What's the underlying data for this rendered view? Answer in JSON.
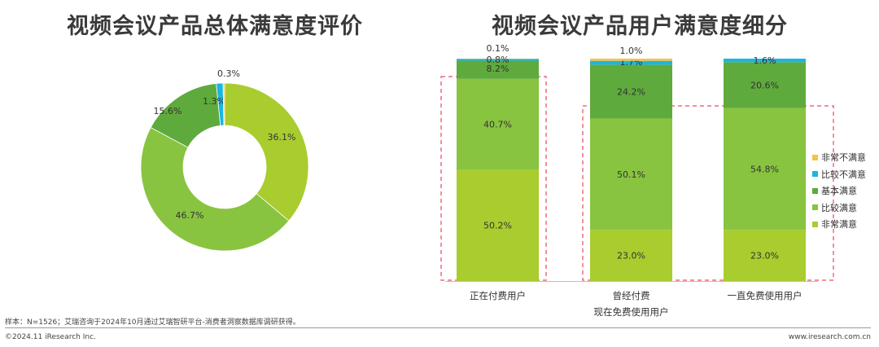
{
  "colors": {
    "very_dissatisfied": "#f5c242",
    "dissatisfied": "#19b6e0",
    "neutral": "#5faa3c",
    "satisfied": "#88c43f",
    "very_satisfied": "#a9cc2f",
    "highlight_box": "#ef6b7c"
  },
  "chart_data": [
    {
      "type": "pie",
      "donut": true,
      "title": "视频会议产品总体满意度评价",
      "slices": [
        {
          "name": "非常满意",
          "value": 36.1,
          "label": "36.1%",
          "color_key": "very_satisfied"
        },
        {
          "name": "比较满意",
          "value": 46.7,
          "label": "46.7%",
          "color_key": "satisfied"
        },
        {
          "name": "基本满意",
          "value": 15.6,
          "label": "15.6%",
          "color_key": "neutral"
        },
        {
          "name": "比较不满意",
          "value": 1.3,
          "label": "1.3%",
          "color_key": "dissatisfied"
        },
        {
          "name": "非常不满意",
          "value": 0.3,
          "label": "0.3%",
          "color_key": "very_dissatisfied"
        }
      ]
    },
    {
      "type": "bar",
      "stacked": true,
      "percent": true,
      "title": "视频会议产品用户满意度细分",
      "categories": [
        "正在付费用户",
        "曾经付费\n现在免费使用用户",
        "一直免费使用用户"
      ],
      "series": [
        {
          "name": "非常满意",
          "color_key": "very_satisfied",
          "values": [
            50.2,
            23.0,
            23.0
          ]
        },
        {
          "name": "比较满意",
          "color_key": "satisfied",
          "values": [
            40.7,
            50.1,
            54.8
          ]
        },
        {
          "name": "基本满意",
          "color_key": "neutral",
          "values": [
            8.2,
            24.2,
            20.6
          ]
        },
        {
          "name": "比较不满意",
          "color_key": "dissatisfied",
          "values": [
            0.8,
            1.7,
            1.6
          ]
        },
        {
          "name": "非常不满意",
          "color_key": "very_dissatisfied",
          "values": [
            0.1,
            1.0,
            0.0
          ]
        }
      ],
      "data_labels": [
        [
          "50.2%",
          "40.7%",
          "8.2%",
          "0.8%",
          "0.1%"
        ],
        [
          "23.0%",
          "50.1%",
          "24.2%",
          "1.7%",
          "1.0%"
        ],
        [
          "23.0%",
          "54.8%",
          "20.6%",
          "1.6%",
          ""
        ]
      ],
      "legend": {
        "position": "right",
        "items": [
          "非常不满意",
          "比较不满意",
          "基本满意",
          "比较满意",
          "非常满意"
        ]
      }
    }
  ],
  "footer": {
    "source": "样本：N=1526；艾瑞咨询于2024年10月通过艾瑞智研平台-消费者洞察数据库调研获得。",
    "copyright": "©2024.11 iResearch Inc.",
    "website": "www.iresearch.com.cn"
  }
}
